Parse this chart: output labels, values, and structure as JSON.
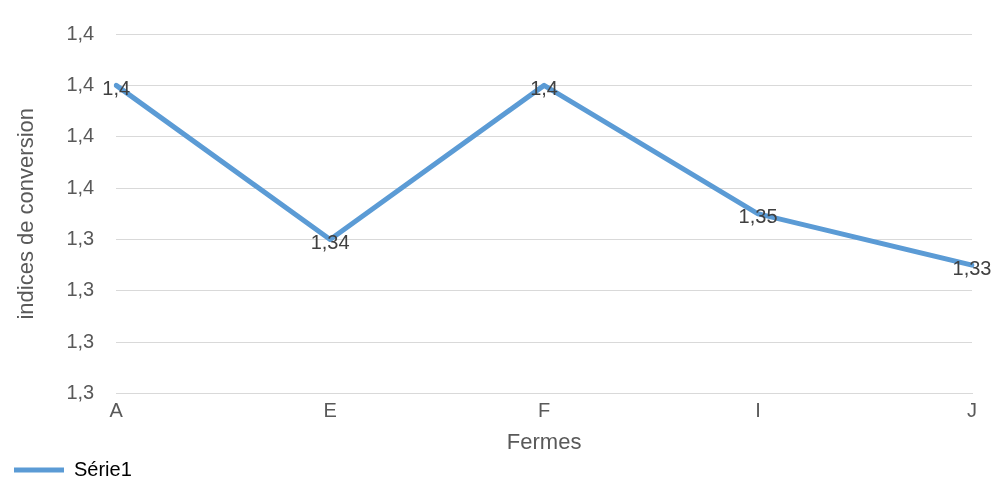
{
  "chart_data": {
    "type": "line",
    "xlabel": "Fermes",
    "ylabel": "indices de conversion",
    "categories": [
      "A",
      "E",
      "F",
      "I",
      "J"
    ],
    "series": [
      {
        "name": "Série1",
        "color": "#5b9bd5",
        "values": [
          1.4,
          1.34,
          1.4,
          1.35,
          1.33
        ],
        "value_labels": [
          "1,4",
          "1,34",
          "1,4",
          "1,35",
          "1,33"
        ]
      }
    ],
    "ylim": [
      1.28,
      1.42
    ],
    "yticks": [
      {
        "value": 1.28,
        "label": "1,3"
      },
      {
        "value": 1.3,
        "label": "1,3"
      },
      {
        "value": 1.32,
        "label": "1,3"
      },
      {
        "value": 1.34,
        "label": "1,3"
      },
      {
        "value": 1.36,
        "label": "1,4"
      },
      {
        "value": 1.38,
        "label": "1,4"
      },
      {
        "value": 1.4,
        "label": "1,4"
      },
      {
        "value": 1.42,
        "label": "1,4"
      }
    ],
    "grid": "y",
    "legend": "bottom left",
    "marker": "none",
    "line_style": "solid"
  }
}
